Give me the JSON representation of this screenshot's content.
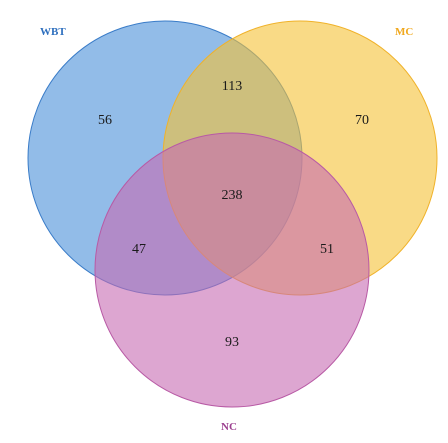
{
  "sets": [
    {
      "key": "wbt",
      "label": "WBT",
      "fill": "#4a90d9",
      "stroke": "#3a7cc8",
      "label_color": "#2e6fbe"
    },
    {
      "key": "mc",
      "label": "MC",
      "fill": "#f5c236",
      "stroke": "#f0b22a",
      "label_color": "#f0a81e"
    },
    {
      "key": "nc",
      "label": "NC",
      "fill": "#c76bb3",
      "stroke": "#b85aa5",
      "label_color": "#9b3f8f"
    }
  ],
  "regions": {
    "wbt_only": "56",
    "mc_only": "70",
    "nc_only": "93",
    "wbt_mc": "113",
    "wbt_nc": "47",
    "mc_nc": "51",
    "all": "238"
  }
}
